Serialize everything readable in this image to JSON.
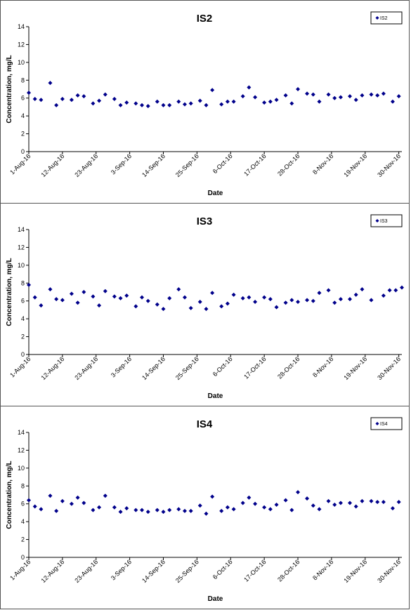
{
  "chart_data": [
    {
      "type": "scatter",
      "title": "IS2",
      "xlabel": "Date",
      "ylabel": "Concentration, mg/L",
      "ylim": [
        0,
        14
      ],
      "yticks": [
        0,
        2,
        4,
        6,
        8,
        10,
        12,
        14
      ],
      "xlim": [
        "2016-08-01",
        "2016-12-01"
      ],
      "xticks": [
        "1-Aug-16",
        "12-Aug-16",
        "23-Aug-16",
        "3-Sep-16",
        "14-Sep-16",
        "25-Sep-16",
        "6-Oct-16",
        "17-Oct-16",
        "28-Oct-16",
        "8-Nov-16",
        "19-Nov-16",
        "30-Nov-16"
      ],
      "grid": false,
      "legend_position": "top-right",
      "series": [
        {
          "name": "IS2",
          "color": "#00008B",
          "marker": "diamond",
          "x": [
            "2016-08-01",
            "2016-08-03",
            "2016-08-05",
            "2016-08-08",
            "2016-08-10",
            "2016-08-12",
            "2016-08-15",
            "2016-08-17",
            "2016-08-19",
            "2016-08-22",
            "2016-08-24",
            "2016-08-26",
            "2016-08-29",
            "2016-08-31",
            "2016-09-02",
            "2016-09-05",
            "2016-09-07",
            "2016-09-09",
            "2016-09-12",
            "2016-09-14",
            "2016-09-16",
            "2016-09-19",
            "2016-09-21",
            "2016-09-23",
            "2016-09-26",
            "2016-09-28",
            "2016-09-30",
            "2016-10-03",
            "2016-10-05",
            "2016-10-07",
            "2016-10-10",
            "2016-10-12",
            "2016-10-14",
            "2016-10-17",
            "2016-10-19",
            "2016-10-21",
            "2016-10-24",
            "2016-10-26",
            "2016-10-28",
            "2016-10-31",
            "2016-11-02",
            "2016-11-04",
            "2016-11-07",
            "2016-11-09",
            "2016-11-11",
            "2016-11-14",
            "2016-11-16",
            "2016-11-18",
            "2016-11-21",
            "2016-11-23",
            "2016-11-25",
            "2016-11-28",
            "2016-11-30"
          ],
          "y": [
            6.6,
            5.9,
            5.8,
            7.7,
            5.2,
            5.9,
            5.8,
            6.3,
            6.2,
            5.4,
            5.7,
            6.4,
            5.9,
            5.2,
            5.5,
            5.4,
            5.2,
            5.1,
            5.6,
            5.2,
            5.2,
            5.6,
            5.3,
            5.4,
            5.7,
            5.2,
            6.9,
            5.3,
            5.6,
            5.6,
            6.2,
            7.2,
            6.1,
            5.5,
            5.6,
            5.8,
            6.3,
            5.4,
            7.0,
            6.5,
            6.4,
            5.6,
            6.4,
            6.0,
            6.1,
            6.2,
            5.8,
            6.3,
            6.4,
            6.3,
            6.5,
            5.6,
            6.2
          ]
        }
      ]
    },
    {
      "type": "scatter",
      "title": "IS3",
      "xlabel": "Date",
      "ylabel": "Concentration, mg/L",
      "ylim": [
        0,
        14
      ],
      "yticks": [
        0,
        2,
        4,
        6,
        8,
        10,
        12,
        14
      ],
      "xlim": [
        "2016-08-01",
        "2016-12-01"
      ],
      "xticks": [
        "1-Aug-16",
        "12-Aug-16",
        "23-Aug-16",
        "3-Sep-16",
        "14-Sep-16",
        "25-Sep-16",
        "6-Oct-16",
        "17-Oct-16",
        "28-Oct-16",
        "8-Nov-16",
        "19-Nov-16",
        "30-Nov-16"
      ],
      "grid": false,
      "legend_position": "top-right",
      "series": [
        {
          "name": "IS3",
          "color": "#00008B",
          "marker": "diamond",
          "x": [
            "2016-08-01",
            "2016-08-03",
            "2016-08-05",
            "2016-08-08",
            "2016-08-10",
            "2016-08-12",
            "2016-08-15",
            "2016-08-17",
            "2016-08-19",
            "2016-08-22",
            "2016-08-24",
            "2016-08-26",
            "2016-08-29",
            "2016-08-31",
            "2016-09-02",
            "2016-09-05",
            "2016-09-07",
            "2016-09-09",
            "2016-09-12",
            "2016-09-14",
            "2016-09-16",
            "2016-09-19",
            "2016-09-21",
            "2016-09-23",
            "2016-09-26",
            "2016-09-28",
            "2016-09-30",
            "2016-10-03",
            "2016-10-05",
            "2016-10-07",
            "2016-10-10",
            "2016-10-12",
            "2016-10-14",
            "2016-10-17",
            "2016-10-19",
            "2016-10-21",
            "2016-10-24",
            "2016-10-26",
            "2016-10-28",
            "2016-10-31",
            "2016-11-02",
            "2016-11-04",
            "2016-11-07",
            "2016-11-09",
            "2016-11-11",
            "2016-11-14",
            "2016-11-16",
            "2016-11-18",
            "2016-11-21",
            "2016-11-25",
            "2016-11-27",
            "2016-11-29",
            "2016-12-01"
          ],
          "y": [
            7.8,
            6.4,
            5.5,
            7.3,
            6.2,
            6.1,
            6.8,
            5.8,
            7.0,
            6.5,
            5.5,
            7.1,
            6.5,
            6.3,
            6.6,
            5.4,
            6.4,
            6.0,
            5.6,
            5.1,
            6.3,
            7.3,
            6.4,
            5.2,
            5.9,
            5.1,
            6.9,
            5.4,
            5.7,
            6.7,
            6.3,
            6.4,
            5.9,
            6.4,
            6.2,
            5.3,
            5.8,
            6.1,
            5.9,
            6.1,
            6.0,
            6.9,
            7.2,
            5.8,
            6.2,
            6.2,
            6.7,
            7.3,
            6.1,
            6.6,
            7.2,
            7.2,
            7.5
          ]
        }
      ]
    },
    {
      "type": "scatter",
      "title": "IS4",
      "xlabel": "Date",
      "ylabel": "Concentration, mg/L",
      "ylim": [
        0,
        14
      ],
      "yticks": [
        0,
        2,
        4,
        6,
        8,
        10,
        12,
        14
      ],
      "xlim": [
        "2016-08-01",
        "2016-12-01"
      ],
      "xticks": [
        "1-Aug-16",
        "12-Aug-16",
        "23-Aug-16",
        "3-Sep-16",
        "14-Sep-16",
        "25-Sep-16",
        "6-Oct-16",
        "17-Oct-16",
        "28-Oct-16",
        "8-Nov-16",
        "19-Nov-16",
        "30-Nov-16"
      ],
      "grid": false,
      "legend_position": "top-right",
      "series": [
        {
          "name": "IS4",
          "color": "#00008B",
          "marker": "diamond",
          "x": [
            "2016-08-01",
            "2016-08-03",
            "2016-08-05",
            "2016-08-08",
            "2016-08-10",
            "2016-08-12",
            "2016-08-15",
            "2016-08-17",
            "2016-08-19",
            "2016-08-22",
            "2016-08-24",
            "2016-08-26",
            "2016-08-29",
            "2016-08-31",
            "2016-09-02",
            "2016-09-05",
            "2016-09-07",
            "2016-09-09",
            "2016-09-12",
            "2016-09-14",
            "2016-09-16",
            "2016-09-19",
            "2016-09-21",
            "2016-09-23",
            "2016-09-26",
            "2016-09-28",
            "2016-09-30",
            "2016-10-03",
            "2016-10-05",
            "2016-10-07",
            "2016-10-10",
            "2016-10-12",
            "2016-10-14",
            "2016-10-17",
            "2016-10-19",
            "2016-10-21",
            "2016-10-24",
            "2016-10-26",
            "2016-10-28",
            "2016-10-31",
            "2016-11-02",
            "2016-11-04",
            "2016-11-07",
            "2016-11-09",
            "2016-11-11",
            "2016-11-14",
            "2016-11-16",
            "2016-11-18",
            "2016-11-21",
            "2016-11-23",
            "2016-11-25",
            "2016-11-28",
            "2016-11-30"
          ],
          "y": [
            6.4,
            5.7,
            5.4,
            6.9,
            5.2,
            6.3,
            6.0,
            6.7,
            6.1,
            5.3,
            5.6,
            6.9,
            5.6,
            5.1,
            5.5,
            5.3,
            5.3,
            5.1,
            5.3,
            5.1,
            5.3,
            5.4,
            5.2,
            5.2,
            5.8,
            4.9,
            6.8,
            5.2,
            5.6,
            5.4,
            6.1,
            6.7,
            6.0,
            5.6,
            5.4,
            5.9,
            6.4,
            5.3,
            7.3,
            6.6,
            5.8,
            5.4,
            6.3,
            5.9,
            6.1,
            6.1,
            5.7,
            6.3,
            6.3,
            6.2,
            6.2,
            5.5,
            6.2
          ]
        }
      ]
    }
  ]
}
